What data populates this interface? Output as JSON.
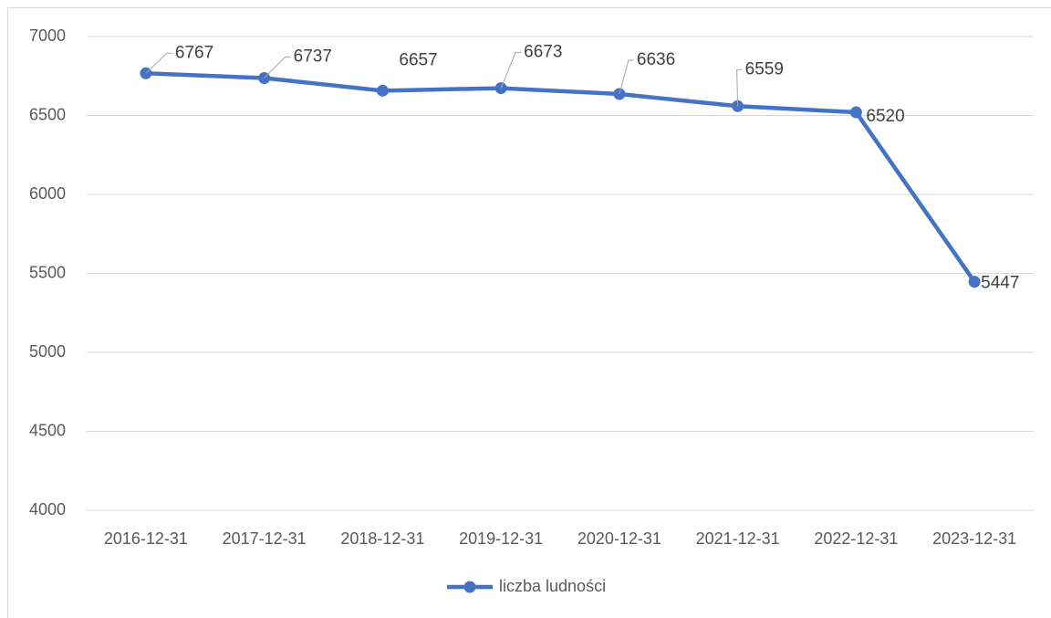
{
  "chart_data": {
    "type": "line",
    "categories": [
      "2016-12-31",
      "2017-12-31",
      "2018-12-31",
      "2019-12-31",
      "2020-12-31",
      "2021-12-31",
      "2022-12-31",
      "2023-12-31"
    ],
    "series": [
      {
        "name": "liczba ludności",
        "color": "#4472c4",
        "values": [
          6767,
          6737,
          6657,
          6673,
          6636,
          6559,
          6520,
          5447
        ]
      }
    ],
    "ylim": [
      4000,
      7000
    ],
    "yticks": [
      4000,
      4500,
      5000,
      5500,
      6000,
      6500,
      7000
    ],
    "grid": true,
    "legend": "bottom"
  }
}
